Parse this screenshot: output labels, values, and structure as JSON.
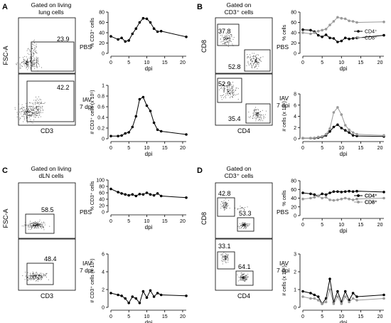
{
  "panels": {
    "A": {
      "letter": "A",
      "gate_title": [
        "Gated on living",
        "lung cells"
      ],
      "y_axis_label": "FSC-A",
      "x_axis_label": "CD3",
      "rows": [
        {
          "gate_value": "23.9",
          "condition": [
            "PBS"
          ]
        },
        {
          "gate_value": "42.2",
          "condition": [
            "IAV",
            "7 dpi"
          ]
        }
      ]
    },
    "B": {
      "letter": "B",
      "gate_title": [
        "Gated on",
        "CD3⁺ cells"
      ],
      "y_axis_label": "CD8",
      "x_axis_label": "CD4",
      "rows": [
        {
          "gate_values": [
            "37.8",
            "52.8"
          ],
          "condition": [
            "PBS"
          ]
        },
        {
          "gate_values": [
            "52.9",
            "35.4"
          ],
          "condition": [
            "IAV",
            "7 dpi"
          ]
        }
      ]
    },
    "C": {
      "letter": "C",
      "gate_title": [
        "Gated on living",
        "dLN cells"
      ],
      "y_axis_label": "FSC-A",
      "x_axis_label": "CD3",
      "rows": [
        {
          "gate_value": "58.5",
          "condition": [
            "PBS"
          ]
        },
        {
          "gate_value": "48.4",
          "condition": [
            "IAV",
            "7 dpi"
          ]
        }
      ]
    },
    "D": {
      "letter": "D",
      "gate_title": [
        "Gated on",
        "CD3⁺ cells"
      ],
      "y_axis_label": "CD8",
      "x_axis_label": "CD4",
      "rows": [
        {
          "gate_values": [
            "42.8",
            "53.3"
          ],
          "condition": [
            "PBS"
          ]
        },
        {
          "gate_values": [
            "33.1",
            "64.1"
          ],
          "condition": [
            "IAV",
            "7 dpi"
          ]
        }
      ]
    }
  },
  "legend": {
    "cd4": "CD4⁺",
    "cd8": "CD8⁺"
  },
  "colors": {
    "cd4": "#000000",
    "cd8": "#999999"
  },
  "chart_data": [
    {
      "id": "A-pct",
      "type": "line",
      "ylabel": "% CD3⁺ cells",
      "xlabel": "dpi",
      "ylim": [
        0,
        80
      ],
      "yticks": [
        0,
        20,
        40,
        60,
        80
      ],
      "xticks": [
        0,
        5,
        10,
        15,
        20
      ],
      "x": [
        0,
        2,
        3,
        4,
        5,
        6,
        7,
        8,
        9,
        10,
        11,
        12,
        13,
        14,
        21
      ],
      "series": [
        {
          "values": [
            33,
            27,
            30,
            23,
            25,
            38,
            48,
            60,
            68,
            67,
            60,
            48,
            42,
            43,
            32
          ]
        }
      ]
    },
    {
      "id": "A-num",
      "type": "line",
      "ylabel": "# CD3⁺ cells (x 10⁵)",
      "xlabel": "dpi",
      "ylim": [
        0,
        1.0
      ],
      "yticks": [
        0,
        0.2,
        0.4,
        0.6,
        0.8,
        1.0
      ],
      "xticks": [
        0,
        5,
        10,
        15,
        20
      ],
      "x": [
        0,
        2,
        3,
        4,
        5,
        6,
        7,
        8,
        9,
        10,
        11,
        12,
        13,
        14,
        21
      ],
      "series": [
        {
          "values": [
            0.05,
            0.05,
            0.06,
            0.1,
            0.12,
            0.22,
            0.42,
            0.74,
            0.78,
            0.62,
            0.52,
            0.3,
            0.17,
            0.14,
            0.08
          ]
        }
      ]
    },
    {
      "id": "B-pct",
      "type": "line",
      "ylabel": "% cells",
      "xlabel": "dpi",
      "ylim": [
        0,
        80
      ],
      "yticks": [
        0,
        20,
        40,
        60,
        80
      ],
      "xticks": [
        0,
        5,
        10,
        15,
        20
      ],
      "x": [
        0,
        2,
        3,
        4,
        5,
        6,
        7,
        8,
        9,
        10,
        11,
        12,
        13,
        14,
        21
      ],
      "legend_position": "right",
      "series": [
        {
          "name": "CD4⁺",
          "values": [
            46,
            45,
            42,
            35,
            32,
            36,
            30,
            29,
            22,
            24,
            30,
            28,
            29,
            30,
            35
          ]
        },
        {
          "name": "CD8⁺",
          "values": [
            40,
            38,
            40,
            43,
            45,
            47,
            55,
            62,
            70,
            68,
            67,
            63,
            62,
            60,
            61
          ]
        }
      ]
    },
    {
      "id": "B-num",
      "type": "line",
      "ylabel": "# cells (x 10⁵)",
      "xlabel": "dpi",
      "ylim": [
        0,
        8
      ],
      "yticks": [
        0,
        2,
        4,
        6,
        8
      ],
      "xticks": [
        0,
        5,
        10,
        15,
        20
      ],
      "x": [
        0,
        2,
        3,
        4,
        5,
        6,
        7,
        8,
        9,
        10,
        11,
        12,
        13,
        14,
        21
      ],
      "series": [
        {
          "name": "CD4⁺",
          "values": [
            0.1,
            0.1,
            0.1,
            0.2,
            0.3,
            0.6,
            1.3,
            2.1,
            2.5,
            1.9,
            1.5,
            1.1,
            0.6,
            0.5,
            0.4
          ]
        },
        {
          "name": "CD8⁺",
          "values": [
            0.1,
            0.1,
            0.15,
            0.3,
            0.4,
            0.8,
            1.8,
            4.7,
            5.6,
            4.3,
            2.4,
            1.6,
            1.1,
            0.8,
            0.6
          ]
        }
      ]
    },
    {
      "id": "C-pct",
      "type": "line",
      "ylabel": "% CD3⁺ cells",
      "xlabel": "dpi",
      "ylim": [
        0,
        100
      ],
      "yticks": [
        0,
        20,
        40,
        60,
        80,
        100
      ],
      "xticks": [
        0,
        5,
        10,
        15,
        20
      ],
      "x": [
        0,
        2,
        3,
        4,
        5,
        6,
        7,
        8,
        9,
        10,
        11,
        12,
        13,
        14,
        21
      ],
      "series": [
        {
          "values": [
            72,
            62,
            58,
            55,
            52,
            55,
            50,
            56,
            55,
            60,
            55,
            52,
            58,
            50,
            45
          ]
        }
      ]
    },
    {
      "id": "C-num",
      "type": "line",
      "ylabel": "# CD3⁺ cells (x 10⁵)",
      "xlabel": "dpi",
      "ylim": [
        0,
        6
      ],
      "yticks": [
        0,
        2,
        4,
        6
      ],
      "xticks": [
        0,
        5,
        10,
        15,
        20
      ],
      "x": [
        0,
        2,
        3,
        4,
        5,
        6,
        7,
        8,
        9,
        10,
        11,
        12,
        13,
        14,
        21
      ],
      "series": [
        {
          "values": [
            1.6,
            1.4,
            1.3,
            1.0,
            0.5,
            1.2,
            1.0,
            0.5,
            1.8,
            1.1,
            1.9,
            1.2,
            1.6,
            1.4,
            1.3
          ]
        }
      ]
    },
    {
      "id": "D-pct",
      "type": "line",
      "ylabel": "% cells",
      "xlabel": "dpi",
      "ylim": [
        0,
        80
      ],
      "yticks": [
        0,
        20,
        40,
        60,
        80
      ],
      "xticks": [
        0,
        5,
        10,
        15,
        20
      ],
      "x": [
        0,
        2,
        3,
        4,
        5,
        6,
        7,
        8,
        9,
        10,
        11,
        12,
        13,
        14,
        21
      ],
      "legend_position": "bottom-right",
      "series": [
        {
          "name": "CD4⁺",
          "values": [
            52,
            50,
            48,
            45,
            50,
            48,
            52,
            55,
            55,
            54,
            55,
            56,
            55,
            56,
            54
          ]
        },
        {
          "name": "CD8⁺",
          "values": [
            38,
            40,
            42,
            45,
            40,
            42,
            36,
            35,
            36,
            38,
            40,
            38,
            36,
            38,
            40
          ]
        }
      ]
    },
    {
      "id": "D-num",
      "type": "line",
      "ylabel": "# cells (x 10⁵)",
      "xlabel": "dpi",
      "ylim": [
        0,
        3
      ],
      "yticks": [
        0,
        1,
        2,
        3
      ],
      "xticks": [
        0,
        5,
        10,
        15,
        20
      ],
      "x": [
        0,
        2,
        3,
        4,
        5,
        6,
        7,
        8,
        9,
        10,
        11,
        12,
        13,
        14,
        21
      ],
      "series": [
        {
          "name": "CD4⁺",
          "values": [
            0.9,
            0.8,
            0.7,
            0.6,
            0.2,
            0.5,
            1.6,
            0.3,
            0.9,
            0.3,
            0.9,
            0.4,
            0.8,
            0.6,
            0.7
          ]
        },
        {
          "name": "CD8⁺",
          "values": [
            0.6,
            0.5,
            0.5,
            0.4,
            0.2,
            0.3,
            1.0,
            0.2,
            0.6,
            0.2,
            0.6,
            0.3,
            0.5,
            0.4,
            0.5
          ]
        }
      ]
    }
  ]
}
